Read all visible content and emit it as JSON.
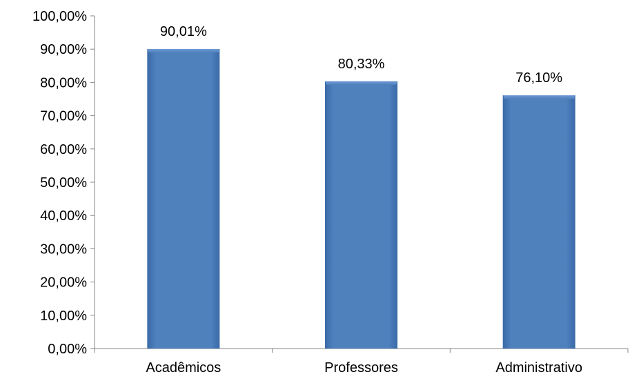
{
  "chart_data": {
    "type": "bar",
    "title": "",
    "xlabel": "",
    "ylabel": "",
    "categories": [
      "Acadêmicos",
      "Professores",
      "Administrativo"
    ],
    "values": [
      90.01,
      80.33,
      76.1
    ],
    "value_labels": [
      "90,01%",
      "80,33%",
      "76,10%"
    ],
    "ylim": [
      0,
      100
    ],
    "y_ticks": [
      0,
      10,
      20,
      30,
      40,
      50,
      60,
      70,
      80,
      90,
      100
    ],
    "y_tick_labels": [
      "0,00%",
      "10,00%",
      "20,00%",
      "30,00%",
      "40,00%",
      "50,00%",
      "60,00%",
      "70,00%",
      "80,00%",
      "90,00%",
      "100,00%"
    ],
    "grid": false,
    "legend": "none",
    "colors": {
      "bar_fill": "#4f81bd",
      "bar_light": "#6f9ad6",
      "bar_dark": "#3a6aa8",
      "axis": "#868686"
    }
  }
}
